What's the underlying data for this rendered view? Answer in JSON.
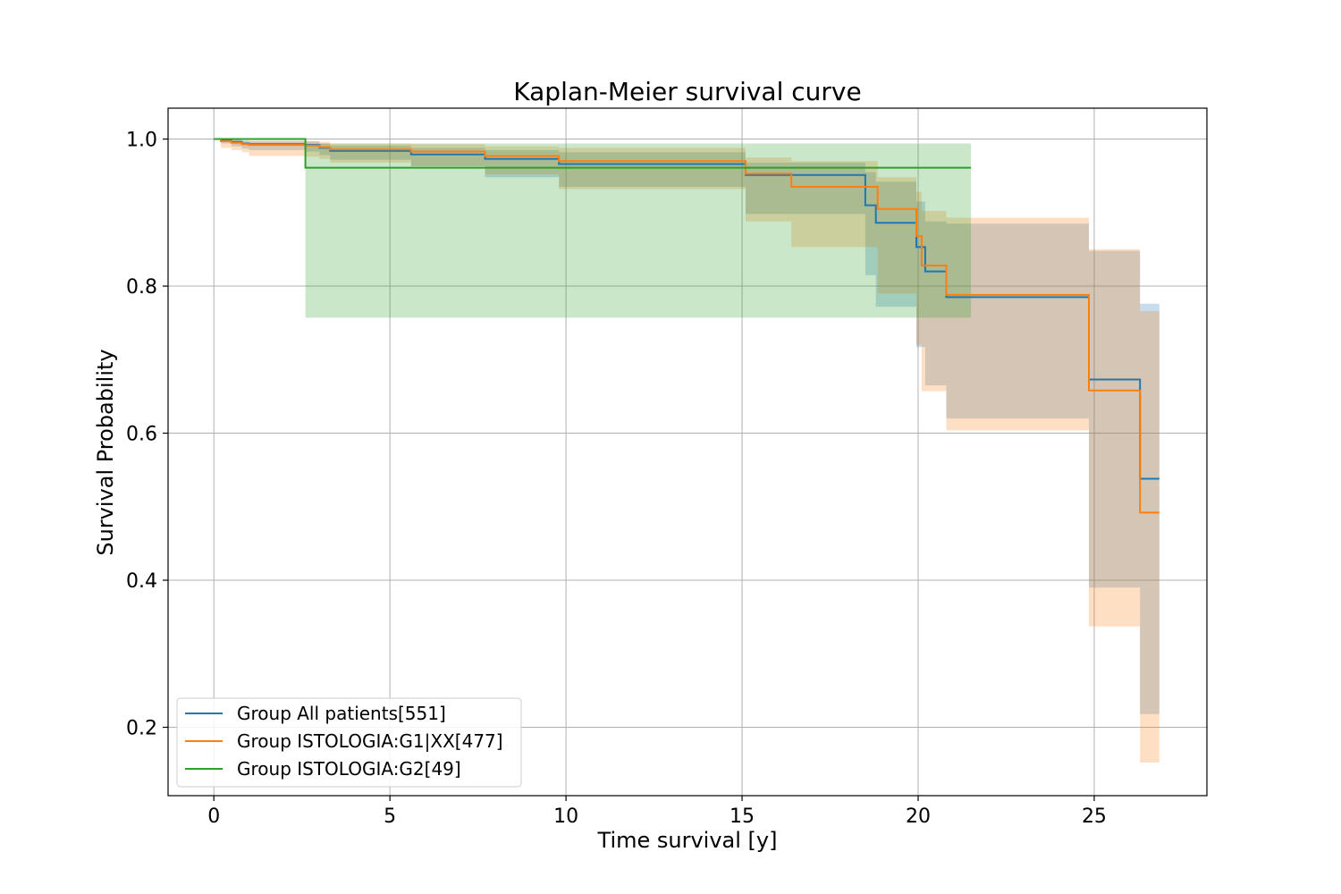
{
  "chart_data": {
    "type": "line",
    "title": "Kaplan-Meier survival curve",
    "xlabel": "Time survival [y]",
    "ylabel": "Survival Probability",
    "xlim": [
      -1.3,
      28.2
    ],
    "ylim": [
      0.107,
      1.042
    ],
    "xticks": [
      0,
      5,
      10,
      15,
      20,
      25
    ],
    "yticks": [
      0.2,
      0.4,
      0.6,
      0.8,
      1.0
    ],
    "xtick_labels": [
      "0",
      "5",
      "10",
      "15",
      "20",
      "25"
    ],
    "ytick_labels": [
      "0.2",
      "0.4",
      "0.6",
      "0.8",
      "1.0"
    ],
    "grid": true,
    "legend_position": "lower-left",
    "series": [
      {
        "name": "Group All patients[551]",
        "color": "#1f77b4",
        "times": [
          0,
          0.2,
          0.5,
          0.8,
          1.0,
          2.6,
          3.0,
          3.3,
          5.6,
          7.7,
          9.8,
          15.1,
          18.5,
          18.8,
          19.95,
          20.2,
          20.8,
          24.85,
          26.3,
          26.85
        ],
        "survival": [
          1.0,
          0.998,
          0.996,
          0.994,
          0.993,
          0.992,
          0.988,
          0.984,
          0.979,
          0.973,
          0.966,
          0.951,
          0.91,
          0.886,
          0.853,
          0.82,
          0.785,
          0.673,
          0.538,
          0.538
        ],
        "ci_lower": [
          1.0,
          0.994,
          0.99,
          0.987,
          0.985,
          0.983,
          0.978,
          0.972,
          0.963,
          0.948,
          0.935,
          0.898,
          0.815,
          0.772,
          0.717,
          0.665,
          0.62,
          0.39,
          0.218,
          0.218
        ],
        "ci_upper": [
          1.0,
          1.0,
          0.999,
          0.998,
          0.997,
          0.997,
          0.994,
          0.991,
          0.988,
          0.985,
          0.982,
          0.968,
          0.955,
          0.942,
          0.915,
          0.888,
          0.885,
          0.848,
          0.776,
          0.776
        ]
      },
      {
        "name": "Group ISTOLOGIA:G1|XX[477]",
        "color": "#ff7f0e",
        "times": [
          0,
          0.2,
          0.5,
          0.8,
          1.0,
          2.6,
          3.0,
          3.3,
          5.6,
          7.7,
          9.8,
          15.1,
          16.4,
          18.85,
          19.95,
          20.1,
          20.8,
          24.85,
          26.3,
          26.85
        ],
        "survival": [
          1.0,
          0.997,
          0.995,
          0.993,
          0.992,
          0.991,
          0.989,
          0.986,
          0.983,
          0.977,
          0.97,
          0.953,
          0.935,
          0.905,
          0.868,
          0.828,
          0.788,
          0.658,
          0.492,
          0.492
        ],
        "ci_lower": [
          1.0,
          0.988,
          0.985,
          0.982,
          0.977,
          0.976,
          0.973,
          0.968,
          0.963,
          0.952,
          0.932,
          0.888,
          0.853,
          0.79,
          0.72,
          0.657,
          0.604,
          0.337,
          0.152,
          0.152
        ],
        "ci_upper": [
          1.0,
          1.0,
          0.999,
          0.998,
          0.998,
          0.997,
          0.996,
          0.994,
          0.993,
          0.99,
          0.988,
          0.975,
          0.97,
          0.948,
          0.928,
          0.902,
          0.893,
          0.85,
          0.766,
          0.766
        ]
      },
      {
        "name": "Group ISTOLOGIA:G2[49]",
        "color": "#2ca02c",
        "times": [
          0,
          2.6,
          21.5
        ],
        "survival": [
          1.0,
          0.961,
          0.961
        ],
        "ci_lower": [
          1.0,
          0.757,
          0.757
        ],
        "ci_upper": [
          1.0,
          0.994,
          0.994
        ]
      }
    ]
  }
}
